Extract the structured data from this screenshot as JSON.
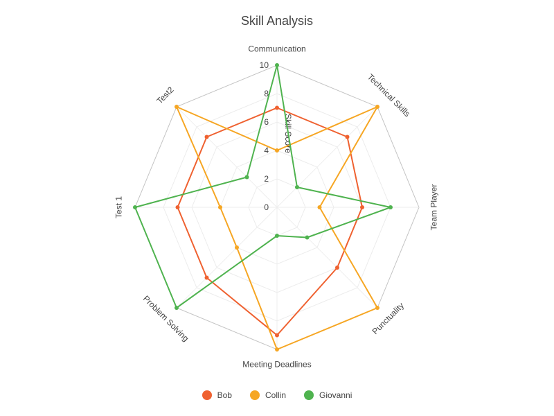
{
  "chart_data": {
    "type": "radar",
    "title": "Skill Analysis",
    "radial_axis_title": "Skill Score",
    "range": [
      0,
      10
    ],
    "ticks": [
      "0",
      "2",
      "4",
      "6",
      "8",
      "10"
    ],
    "axes": [
      "Communication",
      "Technical Skills",
      "Team Player",
      "Punctuality",
      "Meeting Deadlines",
      "Problem Solving",
      "Test 1",
      "Test2"
    ],
    "series": [
      {
        "name": "Bob",
        "color": "#ef6130",
        "values": [
          7,
          7,
          6,
          6,
          9,
          7,
          7,
          7
        ]
      },
      {
        "name": "Collin",
        "color": "#f6a623",
        "values": [
          4,
          10,
          3,
          10,
          10,
          4,
          4,
          10
        ]
      },
      {
        "name": "Giovanni",
        "color": "#4fb34f",
        "values": [
          10,
          2,
          8,
          3,
          2,
          10,
          10,
          3
        ]
      }
    ],
    "legend_position": "bottom-center",
    "grid": true
  }
}
